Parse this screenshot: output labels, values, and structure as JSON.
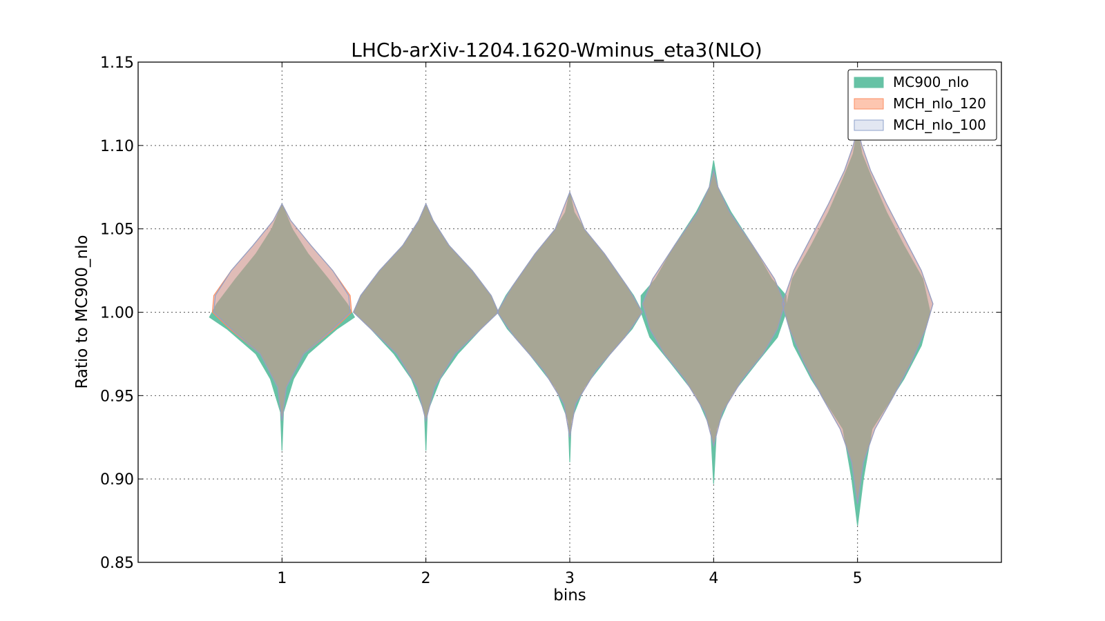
{
  "chart_data": {
    "type": "violin",
    "title": "LHCb-arXiv-1204.1620-Wminus_eta3(NLO)",
    "xlabel": "bins",
    "ylabel": "Ratio to MC900_nlo",
    "xlim": [
      0,
      6
    ],
    "ylim": [
      0.85,
      1.15
    ],
    "x_ticks": [
      1,
      2,
      3,
      4,
      5
    ],
    "y_ticks": [
      "0.85",
      "0.90",
      "0.95",
      "1.00",
      "1.05",
      "1.10",
      "1.15"
    ],
    "grid": true,
    "legend_position": "top-right",
    "series": [
      {
        "name": "MC900_nlo",
        "color": "#66c2a5",
        "fill_opacity": 1.0,
        "violins": [
          {
            "bin": 1,
            "profile": [
              [
                0.917,
                0.0
              ],
              [
                0.94,
                0.01
              ],
              [
                0.96,
                0.08
              ],
              [
                0.975,
                0.18
              ],
              [
                0.99,
                0.38
              ],
              [
                0.997,
                0.5
              ],
              [
                1.005,
                0.45
              ],
              [
                1.02,
                0.32
              ],
              [
                1.035,
                0.18
              ],
              [
                1.05,
                0.07
              ],
              [
                1.065,
                0.0
              ]
            ]
          },
          {
            "bin": 2,
            "profile": [
              [
                0.917,
                0.0
              ],
              [
                0.94,
                0.01
              ],
              [
                0.96,
                0.1
              ],
              [
                0.975,
                0.22
              ],
              [
                0.99,
                0.38
              ],
              [
                1.0,
                0.5
              ],
              [
                1.01,
                0.45
              ],
              [
                1.025,
                0.32
              ],
              [
                1.04,
                0.16
              ],
              [
                1.055,
                0.05
              ],
              [
                1.065,
                0.0
              ]
            ]
          },
          {
            "bin": 3,
            "profile": [
              [
                0.91,
                0.0
              ],
              [
                0.935,
                0.01
              ],
              [
                0.955,
                0.1
              ],
              [
                0.975,
                0.28
              ],
              [
                0.99,
                0.43
              ],
              [
                1.0,
                0.5
              ],
              [
                1.01,
                0.44
              ],
              [
                1.03,
                0.28
              ],
              [
                1.05,
                0.1
              ],
              [
                1.06,
                0.03
              ],
              [
                1.072,
                0.0
              ]
            ]
          },
          {
            "bin": 4,
            "profile": [
              [
                0.897,
                0.0
              ],
              [
                0.93,
                0.02
              ],
              [
                0.95,
                0.12
              ],
              [
                0.97,
                0.3
              ],
              [
                0.985,
                0.44
              ],
              [
                1.0,
                0.5
              ],
              [
                1.01,
                0.5
              ],
              [
                1.02,
                0.4
              ],
              [
                1.04,
                0.27
              ],
              [
                1.06,
                0.12
              ],
              [
                1.075,
                0.03
              ],
              [
                1.091,
                0.0
              ]
            ]
          },
          {
            "bin": 5,
            "profile": [
              [
                0.872,
                0.0
              ],
              [
                0.9,
                0.04
              ],
              [
                0.93,
                0.1
              ],
              [
                0.96,
                0.32
              ],
              [
                0.98,
                0.44
              ],
              [
                1.0,
                0.5
              ],
              [
                1.02,
                0.45
              ],
              [
                1.04,
                0.32
              ],
              [
                1.06,
                0.2
              ],
              [
                1.08,
                0.1
              ],
              [
                1.095,
                0.03
              ],
              [
                1.11,
                0.0
              ]
            ]
          }
        ]
      },
      {
        "name": "MCH_nlo_120",
        "color": "#fc8d62",
        "fill_opacity": 0.5,
        "violins": [
          {
            "bin": 1,
            "profile": [
              [
                0.935,
                0.0
              ],
              [
                0.955,
                0.03
              ],
              [
                0.975,
                0.15
              ],
              [
                0.99,
                0.36
              ],
              [
                1.0,
                0.48
              ],
              [
                1.01,
                0.47
              ],
              [
                1.025,
                0.35
              ],
              [
                1.04,
                0.2
              ],
              [
                1.055,
                0.06
              ],
              [
                1.065,
                0.0
              ]
            ]
          },
          {
            "bin": 2,
            "profile": [
              [
                0.935,
                0.0
              ],
              [
                0.955,
                0.06
              ],
              [
                0.975,
                0.2
              ],
              [
                0.99,
                0.38
              ],
              [
                1.0,
                0.5
              ],
              [
                1.01,
                0.45
              ],
              [
                1.025,
                0.32
              ],
              [
                1.04,
                0.16
              ],
              [
                1.055,
                0.05
              ],
              [
                1.065,
                0.0
              ]
            ]
          },
          {
            "bin": 3,
            "profile": [
              [
                0.925,
                0.0
              ],
              [
                0.945,
                0.04
              ],
              [
                0.965,
                0.18
              ],
              [
                0.985,
                0.38
              ],
              [
                1.0,
                0.5
              ],
              [
                1.015,
                0.4
              ],
              [
                1.035,
                0.24
              ],
              [
                1.05,
                0.1
              ],
              [
                1.072,
                0.0
              ]
            ]
          },
          {
            "bin": 4,
            "profile": [
              [
                0.92,
                0.0
              ],
              [
                0.94,
                0.06
              ],
              [
                0.96,
                0.2
              ],
              [
                0.975,
                0.34
              ],
              [
                0.99,
                0.44
              ],
              [
                1.005,
                0.49
              ],
              [
                1.02,
                0.42
              ],
              [
                1.04,
                0.27
              ],
              [
                1.06,
                0.11
              ],
              [
                1.075,
                0.03
              ],
              [
                1.085,
                0.0
              ]
            ]
          },
          {
            "bin": 5,
            "profile": [
              [
                0.885,
                0.0
              ],
              [
                0.91,
                0.04
              ],
              [
                0.93,
                0.12
              ],
              [
                0.95,
                0.25
              ],
              [
                0.97,
                0.37
              ],
              [
                0.99,
                0.47
              ],
              [
                1.005,
                0.52
              ],
              [
                1.025,
                0.44
              ],
              [
                1.045,
                0.32
              ],
              [
                1.065,
                0.2
              ],
              [
                1.085,
                0.09
              ],
              [
                1.1,
                0.03
              ],
              [
                1.11,
                0.0
              ]
            ]
          }
        ]
      },
      {
        "name": "MCH_nlo_100",
        "color": "#8da0cb",
        "fill_opacity": 0.25,
        "violins": [
          {
            "bin": 1,
            "profile": [
              [
                0.935,
                0.0
              ],
              [
                0.955,
                0.03
              ],
              [
                0.975,
                0.15
              ],
              [
                0.99,
                0.35
              ],
              [
                1.0,
                0.47
              ],
              [
                1.01,
                0.46
              ],
              [
                1.025,
                0.35
              ],
              [
                1.04,
                0.2
              ],
              [
                1.055,
                0.06
              ],
              [
                1.065,
                0.0
              ]
            ]
          },
          {
            "bin": 2,
            "profile": [
              [
                0.935,
                0.0
              ],
              [
                0.955,
                0.06
              ],
              [
                0.975,
                0.2
              ],
              [
                0.99,
                0.38
              ],
              [
                1.0,
                0.5
              ],
              [
                1.01,
                0.45
              ],
              [
                1.025,
                0.32
              ],
              [
                1.04,
                0.16
              ],
              [
                1.055,
                0.05
              ],
              [
                1.065,
                0.0
              ]
            ]
          },
          {
            "bin": 3,
            "profile": [
              [
                0.925,
                0.0
              ],
              [
                0.945,
                0.04
              ],
              [
                0.965,
                0.18
              ],
              [
                0.985,
                0.38
              ],
              [
                1.0,
                0.5
              ],
              [
                1.015,
                0.4
              ],
              [
                1.035,
                0.24
              ],
              [
                1.05,
                0.1
              ],
              [
                1.072,
                0.0
              ]
            ]
          },
          {
            "bin": 4,
            "profile": [
              [
                0.92,
                0.0
              ],
              [
                0.94,
                0.06
              ],
              [
                0.96,
                0.2
              ],
              [
                0.975,
                0.34
              ],
              [
                0.99,
                0.44
              ],
              [
                1.005,
                0.49
              ],
              [
                1.02,
                0.42
              ],
              [
                1.04,
                0.27
              ],
              [
                1.06,
                0.11
              ],
              [
                1.075,
                0.03
              ],
              [
                1.085,
                0.0
              ]
            ]
          },
          {
            "bin": 5,
            "profile": [
              [
                0.885,
                0.0
              ],
              [
                0.91,
                0.04
              ],
              [
                0.93,
                0.12
              ],
              [
                0.95,
                0.25
              ],
              [
                0.97,
                0.37
              ],
              [
                0.99,
                0.47
              ],
              [
                1.005,
                0.52
              ],
              [
                1.025,
                0.44
              ],
              [
                1.045,
                0.32
              ],
              [
                1.065,
                0.2
              ],
              [
                1.085,
                0.09
              ],
              [
                1.1,
                0.03
              ],
              [
                1.11,
                0.0
              ]
            ]
          }
        ]
      }
    ]
  }
}
